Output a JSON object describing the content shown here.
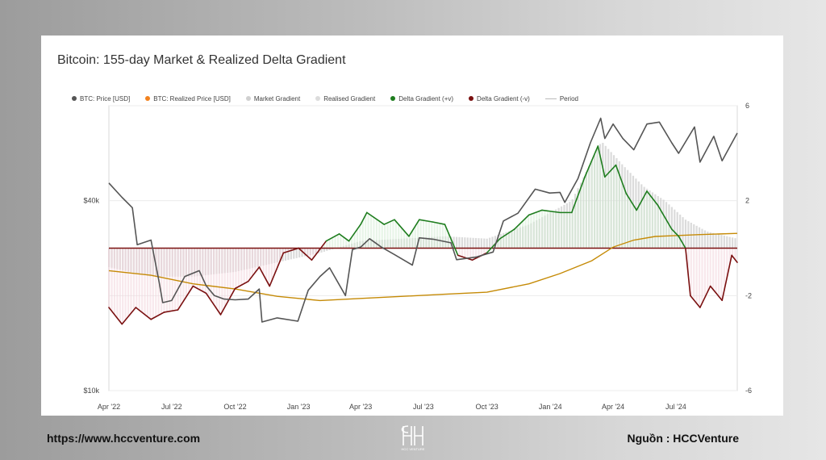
{
  "footer": {
    "url": "https://www.hccventure.com",
    "source": "Nguồn : HCCVenture",
    "logo_text": "HCC VENTURE"
  },
  "chart_data": {
    "type": "line",
    "title": "Bitcoin: 155-day Market & Realized Delta Gradient",
    "legend_position": "top-left",
    "legend": [
      {
        "name": "BTC: Price [USD]",
        "color": "#555555",
        "kind": "dot"
      },
      {
        "name": "BTC: Realized Price [USD]",
        "color": "#f2821f",
        "kind": "dot"
      },
      {
        "name": "Market Gradient",
        "color": "#d0d0d0",
        "kind": "dot"
      },
      {
        "name": "Realised Gradient",
        "color": "#dcdcdc",
        "kind": "dot"
      },
      {
        "name": "Delta Gradient (+v)",
        "color": "#1e7d1e",
        "kind": "dot"
      },
      {
        "name": "Delta Gradient (-v)",
        "color": "#7a1010",
        "kind": "dot"
      },
      {
        "name": "Period",
        "color": "#bbbbbb",
        "kind": "line"
      }
    ],
    "x_ticks": [
      "Apr '22",
      "Jul '22",
      "Oct '22",
      "Jan '23",
      "Apr '23",
      "Jul '23",
      "Oct '23",
      "Jan '24",
      "Apr '24",
      "Jul '24"
    ],
    "x_range": [
      "2022-04-01",
      "2024-09-28"
    ],
    "y_left": {
      "scale": "log",
      "ticks": [
        {
          "value": 40000,
          "label": "$40k"
        },
        {
          "value": 10000,
          "label": "$10k"
        }
      ],
      "range": [
        10000,
        80000
      ]
    },
    "y_right": {
      "ticks": [
        6,
        2,
        -2,
        -6
      ],
      "range": [
        -6,
        6
      ]
    },
    "grid": true,
    "series": [
      {
        "name": "BTC: Price [USD]",
        "axis": "left",
        "color": "#555555",
        "points": [
          [
            "2022-04-01",
            45500
          ],
          [
            "2022-04-20",
            41000
          ],
          [
            "2022-05-05",
            38000
          ],
          [
            "2022-05-12",
            29000
          ],
          [
            "2022-06-01",
            30000
          ],
          [
            "2022-06-13",
            22000
          ],
          [
            "2022-06-18",
            19000
          ],
          [
            "2022-07-01",
            19300
          ],
          [
            "2022-07-20",
            23000
          ],
          [
            "2022-08-10",
            24000
          ],
          [
            "2022-08-20",
            21500
          ],
          [
            "2022-09-01",
            20000
          ],
          [
            "2022-09-15",
            19500
          ],
          [
            "2022-10-01",
            19400
          ],
          [
            "2022-10-20",
            19500
          ],
          [
            "2022-11-05",
            21000
          ],
          [
            "2022-11-09",
            16500
          ],
          [
            "2022-12-01",
            17000
          ],
          [
            "2022-12-31",
            16600
          ],
          [
            "2023-01-15",
            20800
          ],
          [
            "2023-02-01",
            23000
          ],
          [
            "2023-02-15",
            24500
          ],
          [
            "2023-03-10",
            20000
          ],
          [
            "2023-03-20",
            28000
          ],
          [
            "2023-04-01",
            28500
          ],
          [
            "2023-04-14",
            30300
          ],
          [
            "2023-05-01",
            28500
          ],
          [
            "2023-05-20",
            27000
          ],
          [
            "2023-06-15",
            25000
          ],
          [
            "2023-06-25",
            30500
          ],
          [
            "2023-07-15",
            30200
          ],
          [
            "2023-08-10",
            29400
          ],
          [
            "2023-08-18",
            26000
          ],
          [
            "2023-09-15",
            26500
          ],
          [
            "2023-10-10",
            27500
          ],
          [
            "2023-10-25",
            34500
          ],
          [
            "2023-11-15",
            36500
          ],
          [
            "2023-12-10",
            43500
          ],
          [
            "2023-12-31",
            42300
          ],
          [
            "2024-01-15",
            42500
          ],
          [
            "2024-01-22",
            39500
          ],
          [
            "2024-02-10",
            47000
          ],
          [
            "2024-02-28",
            61000
          ],
          [
            "2024-03-14",
            73000
          ],
          [
            "2024-03-20",
            63000
          ],
          [
            "2024-04-01",
            70000
          ],
          [
            "2024-04-15",
            63000
          ],
          [
            "2024-05-01",
            58000
          ],
          [
            "2024-05-20",
            70000
          ],
          [
            "2024-06-07",
            71000
          ],
          [
            "2024-06-25",
            61000
          ],
          [
            "2024-07-05",
            56500
          ],
          [
            "2024-07-28",
            68500
          ],
          [
            "2024-08-05",
            53000
          ],
          [
            "2024-08-25",
            64000
          ],
          [
            "2024-09-06",
            53500
          ],
          [
            "2024-09-28",
            65500
          ]
        ]
      },
      {
        "name": "BTC: Realized Price [USD]",
        "axis": "left",
        "color": "#c58a06",
        "points": [
          [
            "2022-04-01",
            24000
          ],
          [
            "2022-06-01",
            23200
          ],
          [
            "2022-08-01",
            21800
          ],
          [
            "2022-10-01",
            21000
          ],
          [
            "2022-12-01",
            19900
          ],
          [
            "2023-02-01",
            19300
          ],
          [
            "2023-04-01",
            19600
          ],
          [
            "2023-06-01",
            19900
          ],
          [
            "2023-08-01",
            20200
          ],
          [
            "2023-10-01",
            20500
          ],
          [
            "2023-12-01",
            21800
          ],
          [
            "2024-01-15",
            23500
          ],
          [
            "2024-03-01",
            25800
          ],
          [
            "2024-04-01",
            28500
          ],
          [
            "2024-05-01",
            30000
          ],
          [
            "2024-06-01",
            30800
          ],
          [
            "2024-07-01",
            31000
          ],
          [
            "2024-08-01",
            31200
          ],
          [
            "2024-09-28",
            31500
          ]
        ]
      },
      {
        "name": "Delta Gradient",
        "axis": "right",
        "pos_color": "#1e7d1e",
        "neg_color": "#7a1010",
        "points": [
          [
            "2022-04-01",
            -2.5
          ],
          [
            "2022-04-20",
            -3.2
          ],
          [
            "2022-05-10",
            -2.5
          ],
          [
            "2022-06-01",
            -3.0
          ],
          [
            "2022-06-20",
            -2.7
          ],
          [
            "2022-07-10",
            -2.6
          ],
          [
            "2022-08-01",
            -1.6
          ],
          [
            "2022-08-20",
            -1.9
          ],
          [
            "2022-09-10",
            -2.8
          ],
          [
            "2022-10-01",
            -1.7
          ],
          [
            "2022-10-20",
            -1.4
          ],
          [
            "2022-11-05",
            -0.8
          ],
          [
            "2022-11-20",
            -1.6
          ],
          [
            "2022-12-10",
            -0.2
          ],
          [
            "2023-01-01",
            0.0
          ],
          [
            "2023-01-20",
            -0.5
          ],
          [
            "2023-02-10",
            0.3
          ],
          [
            "2023-03-01",
            0.6
          ],
          [
            "2023-03-15",
            0.3
          ],
          [
            "2023-04-01",
            1.0
          ],
          [
            "2023-04-10",
            1.5
          ],
          [
            "2023-04-20",
            1.3
          ],
          [
            "2023-05-05",
            1.0
          ],
          [
            "2023-05-20",
            1.2
          ],
          [
            "2023-06-10",
            0.5
          ],
          [
            "2023-06-25",
            1.2
          ],
          [
            "2023-07-15",
            1.1
          ],
          [
            "2023-08-01",
            1.0
          ],
          [
            "2023-08-20",
            -0.3
          ],
          [
            "2023-09-10",
            -0.5
          ],
          [
            "2023-10-01",
            -0.2
          ],
          [
            "2023-10-20",
            0.4
          ],
          [
            "2023-11-10",
            0.8
          ],
          [
            "2023-12-01",
            1.4
          ],
          [
            "2023-12-20",
            1.6
          ],
          [
            "2024-01-15",
            1.5
          ],
          [
            "2024-02-01",
            1.5
          ],
          [
            "2024-02-20",
            3.0
          ],
          [
            "2024-03-10",
            4.3
          ],
          [
            "2024-03-20",
            3.0
          ],
          [
            "2024-04-05",
            3.5
          ],
          [
            "2024-04-20",
            2.3
          ],
          [
            "2024-05-05",
            1.6
          ],
          [
            "2024-05-20",
            2.4
          ],
          [
            "2024-06-05",
            1.8
          ],
          [
            "2024-06-25",
            0.8
          ],
          [
            "2024-07-05",
            0.5
          ],
          [
            "2024-07-15",
            0.0
          ],
          [
            "2024-07-22",
            -2.0
          ],
          [
            "2024-08-05",
            -2.5
          ],
          [
            "2024-08-20",
            -1.6
          ],
          [
            "2024-09-06",
            -2.2
          ],
          [
            "2024-09-20",
            -0.3
          ],
          [
            "2024-09-28",
            -0.6
          ]
        ]
      },
      {
        "name": "Market Gradient",
        "axis": "right",
        "color": "#cfcfcf",
        "points": [
          [
            "2022-04-01",
            -0.8
          ],
          [
            "2022-06-01",
            -1.2
          ],
          [
            "2022-08-01",
            -1.2
          ],
          [
            "2022-10-01",
            -1.0
          ],
          [
            "2022-12-01",
            -0.6
          ],
          [
            "2023-02-01",
            -0.2
          ],
          [
            "2023-04-01",
            0.3
          ],
          [
            "2023-06-01",
            0.4
          ],
          [
            "2023-08-01",
            0.5
          ],
          [
            "2023-10-01",
            0.4
          ],
          [
            "2023-12-01",
            1.0
          ],
          [
            "2024-02-01",
            2.0
          ],
          [
            "2024-03-15",
            4.5
          ],
          [
            "2024-04-15",
            3.5
          ],
          [
            "2024-05-15",
            2.6
          ],
          [
            "2024-06-15",
            2.0
          ],
          [
            "2024-07-15",
            1.2
          ],
          [
            "2024-08-15",
            0.7
          ],
          [
            "2024-09-28",
            0.4
          ]
        ]
      }
    ]
  }
}
